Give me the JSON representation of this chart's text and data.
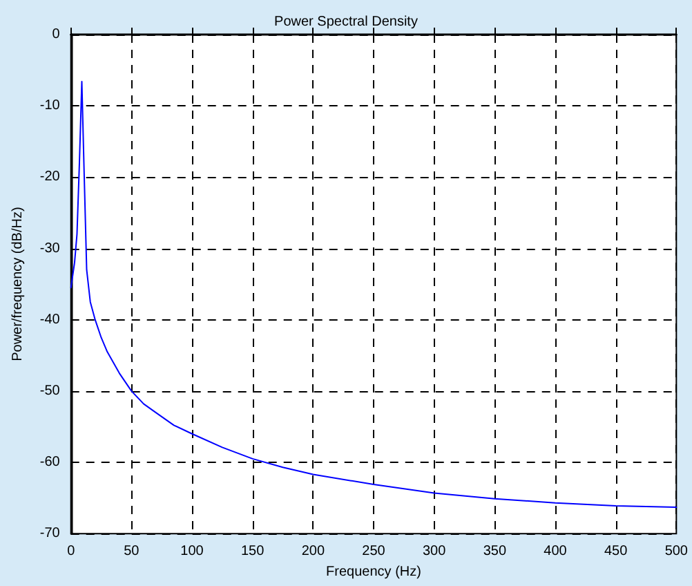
{
  "chart_data": {
    "type": "line",
    "title": "Power Spectral Density",
    "xlabel": "Frequency (Hz)",
    "ylabel": "Power/frequency (dB/Hz)",
    "series": [
      {
        "color": "#0000ff",
        "x": [
          0,
          3,
          5,
          7,
          9,
          11,
          13,
          16,
          20,
          25,
          30,
          40,
          50,
          60,
          70,
          85,
          100,
          125,
          150,
          175,
          200,
          250,
          300,
          350,
          400,
          450,
          500
        ],
        "values": [
          -35.5,
          -32,
          -28,
          -18,
          -6.6,
          -20,
          -33,
          -37.5,
          -40,
          -42.5,
          -44.5,
          -47.5,
          -50,
          -51.8,
          -53,
          -54.8,
          -56,
          -57.9,
          -59.5,
          -60.7,
          -61.7,
          -63.1,
          -64.3,
          -65.1,
          -65.7,
          -66.1,
          -66.3
        ]
      }
    ],
    "xlim": [
      0,
      500
    ],
    "xticks": [
      0,
      50,
      100,
      150,
      200,
      250,
      300,
      350,
      400,
      450,
      500
    ],
    "ylim": [
      -70,
      0
    ],
    "yticks": [
      -70,
      -60,
      -50,
      -40,
      -30,
      -20,
      -10,
      0
    ],
    "grid": true,
    "marker": "none",
    "line_style": "solid"
  }
}
